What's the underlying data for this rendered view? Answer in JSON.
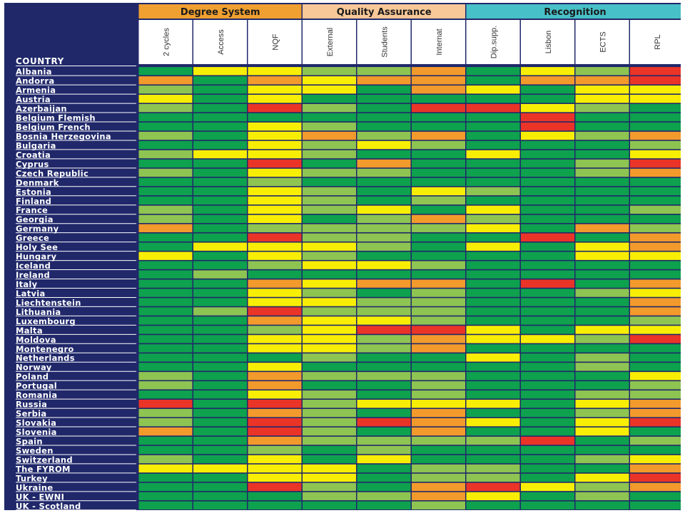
{
  "chart_data": {
    "type": "heatmap",
    "row_header": "COUNTRY",
    "groups": [
      {
        "name": "Degree System",
        "columns": [
          "2 cycles",
          "Access",
          "NQF"
        ],
        "color": "#f0a030"
      },
      {
        "name": "Quality Assurance",
        "columns": [
          "External",
          "Students",
          "Internat"
        ],
        "color": "#f8c898"
      },
      {
        "name": "Recognition",
        "columns": [
          "Dip.supp.",
          "Lisbon",
          "ECTS",
          "RPL"
        ],
        "color": "#48c0c8"
      }
    ],
    "legend_codes": {
      "G": "#0ea14e",
      "L": "#8ec452",
      "Y": "#f8ee05",
      "O": "#f39a2c",
      "R": "#ea3428"
    },
    "rows": [
      {
        "country": "Albania",
        "cells": [
          "G",
          "Y",
          "Y",
          "L",
          "L",
          "O",
          "G",
          "Y",
          "L",
          "R"
        ]
      },
      {
        "country": "Andorra",
        "cells": [
          "O",
          "G",
          "O",
          "Y",
          "O",
          "O",
          "G",
          "O",
          "O",
          "R"
        ]
      },
      {
        "country": "Armenia",
        "cells": [
          "L",
          "G",
          "Y",
          "Y",
          "G",
          "O",
          "Y",
          "G",
          "Y",
          "Y"
        ]
      },
      {
        "country": "Austria",
        "cells": [
          "Y",
          "G",
          "Y",
          "G",
          "G",
          "G",
          "G",
          "G",
          "Y",
          "Y"
        ]
      },
      {
        "country": "Azerbaijan",
        "cells": [
          "L",
          "G",
          "R",
          "L",
          "G",
          "R",
          "R",
          "Y",
          "L",
          "G"
        ]
      },
      {
        "country": "Belgium Flemish",
        "cells": [
          "G",
          "G",
          "G",
          "G",
          "G",
          "G",
          "G",
          "R",
          "G",
          "G"
        ]
      },
      {
        "country": "Belgium French",
        "cells": [
          "G",
          "G",
          "Y",
          "L",
          "G",
          "G",
          "G",
          "R",
          "G",
          "G"
        ]
      },
      {
        "country": "Bosnia Herzegovina",
        "cells": [
          "L",
          "G",
          "Y",
          "O",
          "L",
          "O",
          "G",
          "Y",
          "L",
          "O"
        ]
      },
      {
        "country": "Bulgaria",
        "cells": [
          "G",
          "G",
          "Y",
          "L",
          "Y",
          "L",
          "G",
          "G",
          "G",
          "L"
        ]
      },
      {
        "country": "Croatia",
        "cells": [
          "L",
          "Y",
          "Y",
          "L",
          "G",
          "G",
          "Y",
          "G",
          "G",
          "Y"
        ]
      },
      {
        "country": "Cyprus",
        "cells": [
          "G",
          "G",
          "R",
          "G",
          "O",
          "G",
          "G",
          "G",
          "L",
          "R"
        ]
      },
      {
        "country": "Czech Republic",
        "cells": [
          "L",
          "G",
          "Y",
          "L",
          "L",
          "G",
          "G",
          "G",
          "L",
          "O"
        ]
      },
      {
        "country": "Denmark",
        "cells": [
          "G",
          "G",
          "L",
          "G",
          "G",
          "G",
          "G",
          "G",
          "G",
          "G"
        ]
      },
      {
        "country": "Estonia",
        "cells": [
          "G",
          "G",
          "Y",
          "L",
          "G",
          "Y",
          "L",
          "G",
          "G",
          "G"
        ]
      },
      {
        "country": "Finland",
        "cells": [
          "G",
          "G",
          "Y",
          "L",
          "G",
          "L",
          "G",
          "G",
          "G",
          "G"
        ]
      },
      {
        "country": "France",
        "cells": [
          "L",
          "G",
          "Y",
          "L",
          "Y",
          "G",
          "Y",
          "G",
          "G",
          "L"
        ]
      },
      {
        "country": "Georgia",
        "cells": [
          "L",
          "G",
          "Y",
          "G",
          "L",
          "O",
          "L",
          "G",
          "G",
          "G"
        ]
      },
      {
        "country": "Germany",
        "cells": [
          "O",
          "G",
          "L",
          "L",
          "L",
          "L",
          "Y",
          "G",
          "O",
          "L"
        ]
      },
      {
        "country": "Greece",
        "cells": [
          "G",
          "G",
          "R",
          "L",
          "L",
          "G",
          "G",
          "R",
          "G",
          "O"
        ]
      },
      {
        "country": "Holy See",
        "cells": [
          "G",
          "Y",
          "Y",
          "Y",
          "L",
          "G",
          "Y",
          "G",
          "Y",
          "O"
        ]
      },
      {
        "country": "Hungary",
        "cells": [
          "Y",
          "G",
          "Y",
          "L",
          "G",
          "G",
          "G",
          "G",
          "Y",
          "Y"
        ]
      },
      {
        "country": "Iceland",
        "cells": [
          "G",
          "G",
          "L",
          "Y",
          "Y",
          "L",
          "G",
          "G",
          "G",
          "G"
        ]
      },
      {
        "country": "Ireland",
        "cells": [
          "G",
          "L",
          "G",
          "G",
          "G",
          "G",
          "G",
          "G",
          "G",
          "G"
        ]
      },
      {
        "country": "Italy",
        "cells": [
          "G",
          "G",
          "O",
          "Y",
          "O",
          "O",
          "G",
          "R",
          "G",
          "O"
        ]
      },
      {
        "country": "Latvia",
        "cells": [
          "G",
          "G",
          "Y",
          "L",
          "G",
          "L",
          "G",
          "G",
          "L",
          "Y"
        ]
      },
      {
        "country": "Liechtenstein",
        "cells": [
          "G",
          "G",
          "Y",
          "Y",
          "L",
          "L",
          "G",
          "G",
          "G",
          "O"
        ]
      },
      {
        "country": "Lithuania",
        "cells": [
          "G",
          "L",
          "R",
          "L",
          "L",
          "L",
          "G",
          "G",
          "G",
          "O"
        ]
      },
      {
        "country": "Luxembourg",
        "cells": [
          "G",
          "G",
          "O",
          "Y",
          "Y",
          "L",
          "G",
          "G",
          "G",
          "L"
        ]
      },
      {
        "country": "Malta",
        "cells": [
          "G",
          "G",
          "L",
          "Y",
          "R",
          "R",
          "Y",
          "G",
          "Y",
          "Y"
        ]
      },
      {
        "country": "Moldova",
        "cells": [
          "G",
          "G",
          "Y",
          "Y",
          "L",
          "O",
          "Y",
          "Y",
          "L",
          "R"
        ]
      },
      {
        "country": "Montenegro",
        "cells": [
          "G",
          "G",
          "Y",
          "Y",
          "L",
          "O",
          "G",
          "G",
          "G",
          "G"
        ]
      },
      {
        "country": "Netherlands",
        "cells": [
          "G",
          "G",
          "G",
          "L",
          "G",
          "G",
          "Y",
          "G",
          "L",
          "G"
        ]
      },
      {
        "country": "Norway",
        "cells": [
          "G",
          "G",
          "Y",
          "G",
          "G",
          "G",
          "G",
          "G",
          "L",
          "G"
        ]
      },
      {
        "country": "Poland",
        "cells": [
          "L",
          "G",
          "O",
          "L",
          "L",
          "L",
          "G",
          "G",
          "G",
          "Y"
        ]
      },
      {
        "country": "Portugal",
        "cells": [
          "L",
          "G",
          "O",
          "G",
          "G",
          "L",
          "G",
          "G",
          "G",
          "L"
        ]
      },
      {
        "country": "Romania",
        "cells": [
          "G",
          "G",
          "Y",
          "L",
          "G",
          "L",
          "G",
          "G",
          "L",
          "L"
        ]
      },
      {
        "country": "Russia",
        "cells": [
          "R",
          "G",
          "R",
          "L",
          "Y",
          "Y",
          "Y",
          "G",
          "Y",
          "O"
        ]
      },
      {
        "country": "Serbia",
        "cells": [
          "L",
          "G",
          "O",
          "L",
          "G",
          "O",
          "G",
          "G",
          "L",
          "O"
        ]
      },
      {
        "country": "Slovakia",
        "cells": [
          "L",
          "G",
          "R",
          "L",
          "R",
          "O",
          "Y",
          "G",
          "Y",
          "R"
        ]
      },
      {
        "country": "Slovenia",
        "cells": [
          "O",
          "G",
          "R",
          "L",
          "G",
          "O",
          "G",
          "G",
          "Y",
          "G"
        ]
      },
      {
        "country": "Spain",
        "cells": [
          "G",
          "G",
          "O",
          "L",
          "L",
          "L",
          "L",
          "R",
          "G",
          "L"
        ]
      },
      {
        "country": "Sweden",
        "cells": [
          "G",
          "G",
          "L",
          "G",
          "L",
          "G",
          "G",
          "G",
          "G",
          "G"
        ]
      },
      {
        "country": "Switzerland",
        "cells": [
          "L",
          "G",
          "Y",
          "G",
          "Y",
          "G",
          "G",
          "G",
          "L",
          "Y"
        ]
      },
      {
        "country": "The FYROM",
        "cells": [
          "Y",
          "Y",
          "Y",
          "Y",
          "G",
          "L",
          "L",
          "G",
          "G",
          "O"
        ]
      },
      {
        "country": "Turkey",
        "cells": [
          "G",
          "G",
          "Y",
          "Y",
          "G",
          "L",
          "L",
          "G",
          "Y",
          "R"
        ]
      },
      {
        "country": "Ukraine",
        "cells": [
          "G",
          "G",
          "R",
          "L",
          "G",
          "O",
          "R",
          "Y",
          "L",
          "O"
        ]
      },
      {
        "country": "UK - EWNI",
        "cells": [
          "G",
          "G",
          "G",
          "L",
          "L",
          "O",
          "Y",
          "G",
          "L",
          "G"
        ]
      },
      {
        "country": "UK - Scotland",
        "cells": [
          "G",
          "G",
          "G",
          "G",
          "G",
          "L",
          "G",
          "G",
          "G",
          "G"
        ]
      }
    ]
  }
}
